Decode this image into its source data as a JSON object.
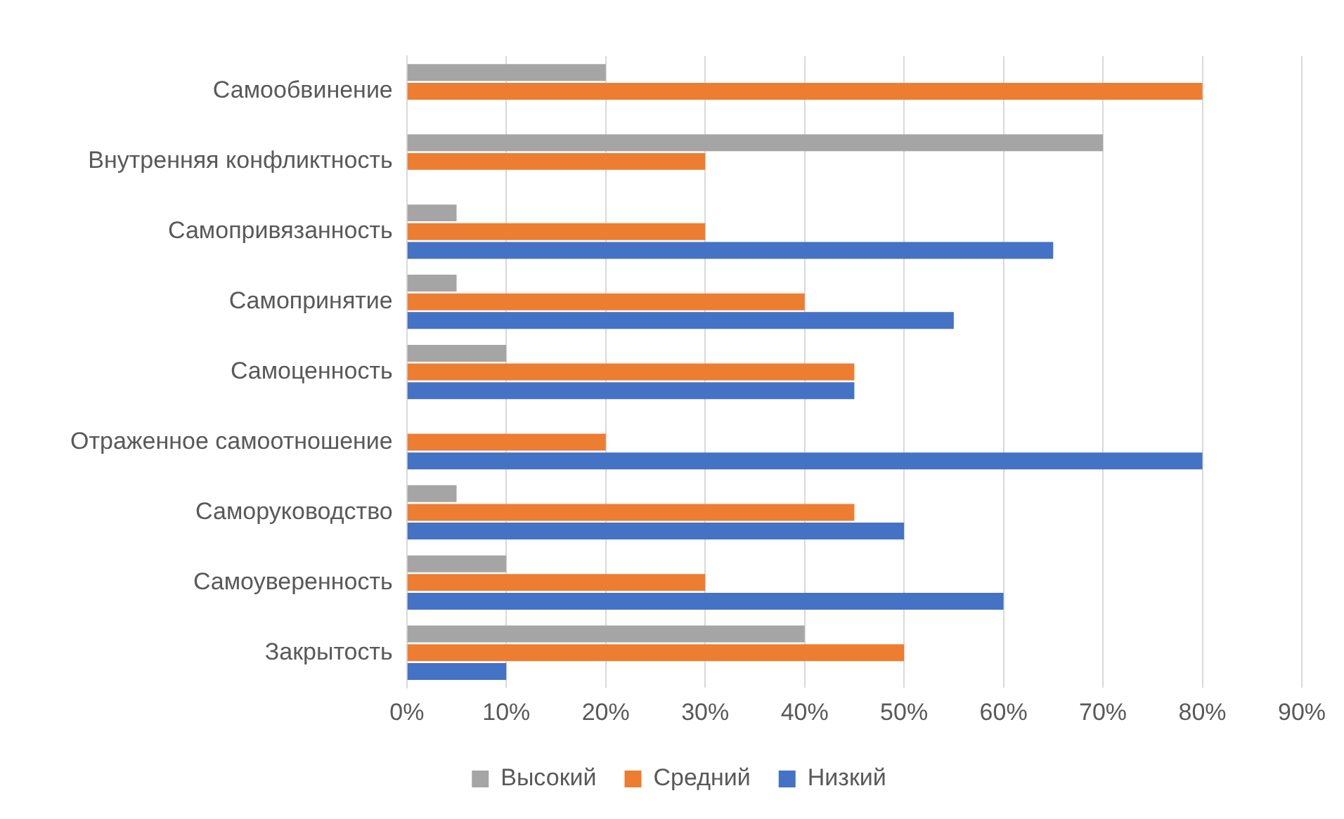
{
  "chart_data": {
    "type": "bar",
    "orientation": "horizontal",
    "categories": [
      "Самообвинение",
      "Внутренняя конфликтность",
      "Самопривязанность",
      "Самопринятие",
      "Самоценность",
      "Отраженное самоотношение",
      "Саморуководство",
      "Самоуверенность",
      "Закрытость"
    ],
    "series": [
      {
        "name": "Высокий",
        "color": "#a5a5a5",
        "values": [
          20,
          70,
          5,
          5,
          10,
          0,
          5,
          10,
          40
        ]
      },
      {
        "name": "Средний",
        "color": "#ed7d31",
        "values": [
          80,
          30,
          30,
          40,
          45,
          20,
          45,
          30,
          50
        ]
      },
      {
        "name": "Низкий",
        "color": "#4472c4",
        "values": [
          0,
          0,
          65,
          55,
          45,
          80,
          50,
          60,
          10
        ]
      }
    ],
    "xlim": [
      0,
      90
    ],
    "xticks": [
      {
        "value": 0,
        "label": "0%"
      },
      {
        "value": 10,
        "label": "10%"
      },
      {
        "value": 20,
        "label": "20%"
      },
      {
        "value": 30,
        "label": "30%"
      },
      {
        "value": 40,
        "label": "40%"
      },
      {
        "value": 50,
        "label": "50%"
      },
      {
        "value": 60,
        "label": "60%"
      },
      {
        "value": 70,
        "label": "70%"
      },
      {
        "value": 80,
        "label": "80%"
      },
      {
        "value": 90,
        "label": "90%"
      }
    ],
    "grid": "x",
    "legend": "bottom"
  }
}
